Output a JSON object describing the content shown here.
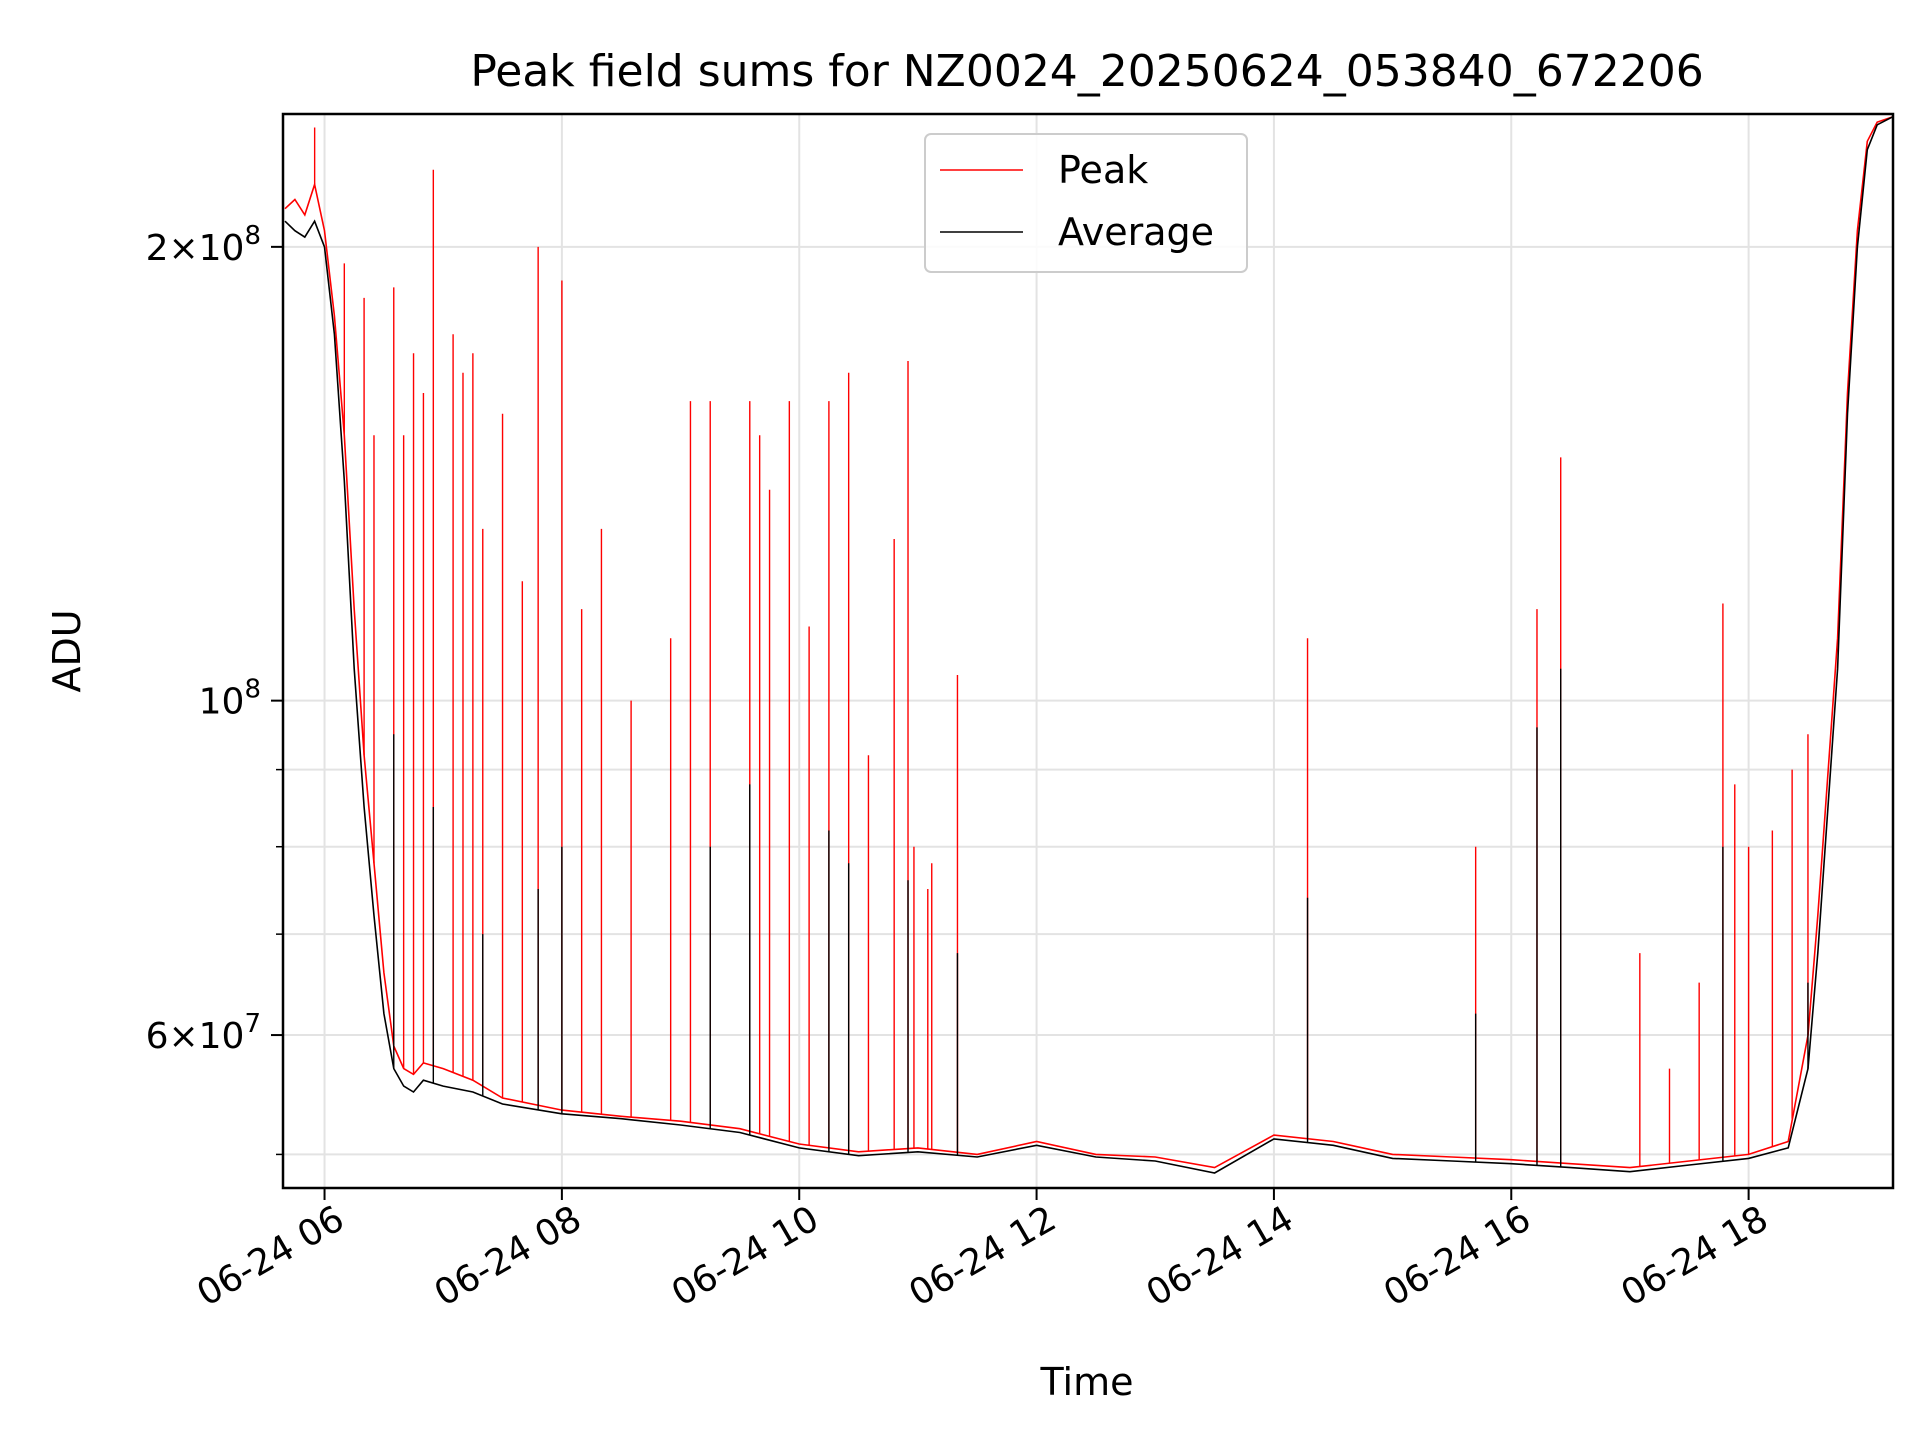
{
  "chart_data": {
    "type": "line",
    "title": "Peak field sums for NZ0024_20250624_053840_672206",
    "xlabel": "Time",
    "ylabel": "ADU",
    "y_scale": "log",
    "ylim": [
      47500000,
      245000000
    ],
    "xlim": [
      "06-24 05:39",
      "06-24 19:13"
    ],
    "grid": true,
    "legend_placement": "top-center",
    "x_ticks": [
      "06-24 06",
      "06-24 08",
      "06-24 10",
      "06-24 12",
      "06-24 14",
      "06-24 16",
      "06-24 18"
    ],
    "y_ticks": [
      {
        "value": 60000000,
        "mantissa": "6",
        "base": "10",
        "exp": "7"
      },
      {
        "value": 100000000,
        "mantissa": "",
        "base": "10",
        "exp": "8"
      },
      {
        "value": 200000000,
        "mantissa": "2",
        "base": "10",
        "exp": "8"
      }
    ],
    "series": [
      {
        "name": "Peak",
        "color": "#ff0000",
        "points": [
          [
            "06-24 05:40",
            212000000
          ],
          [
            "06-24 05:45",
            215000000
          ],
          [
            "06-24 05:50",
            210000000
          ],
          [
            "06-24 05:55",
            220000000
          ],
          [
            "06-24 06:00",
            205000000
          ],
          [
            "06-24 06:05",
            180000000
          ],
          [
            "06-24 06:10",
            150000000
          ],
          [
            "06-24 06:15",
            115000000
          ],
          [
            "06-24 06:20",
            92000000
          ],
          [
            "06-24 06:25",
            78000000
          ],
          [
            "06-24 06:30",
            66000000
          ],
          [
            "06-24 06:35",
            59000000
          ],
          [
            "06-24 06:40",
            57000000
          ],
          [
            "06-24 06:45",
            56500000
          ],
          [
            "06-24 06:50",
            57500000
          ],
          [
            "06-24 07:00",
            57000000
          ],
          [
            "06-24 07:15",
            56000000
          ],
          [
            "06-24 07:30",
            54500000
          ],
          [
            "06-24 08:00",
            53500000
          ],
          [
            "06-24 08:30",
            53000000
          ],
          [
            "06-24 09:00",
            52600000
          ],
          [
            "06-24 09:30",
            52000000
          ],
          [
            "06-24 10:00",
            50800000
          ],
          [
            "06-24 10:30",
            50200000
          ],
          [
            "06-24 11:00",
            50500000
          ],
          [
            "06-24 11:30",
            50000000
          ],
          [
            "06-24 12:00",
            51000000
          ],
          [
            "06-24 12:30",
            50000000
          ],
          [
            "06-24 13:00",
            49800000
          ],
          [
            "06-24 13:30",
            49000000
          ],
          [
            "06-24 14:00",
            51500000
          ],
          [
            "06-24 14:30",
            51000000
          ],
          [
            "06-24 15:00",
            50000000
          ],
          [
            "06-24 15:30",
            49800000
          ],
          [
            "06-24 16:00",
            49600000
          ],
          [
            "06-24 16:30",
            49300000
          ],
          [
            "06-24 17:00",
            49000000
          ],
          [
            "06-24 17:30",
            49500000
          ],
          [
            "06-24 18:00",
            50000000
          ],
          [
            "06-24 18:20",
            51000000
          ],
          [
            "06-24 18:30",
            60000000
          ],
          [
            "06-24 18:35",
            72000000
          ],
          [
            "06-24 18:45",
            110000000
          ],
          [
            "06-24 18:50",
            160000000
          ],
          [
            "06-24 18:55",
            205000000
          ],
          [
            "06-24 19:00",
            235000000
          ],
          [
            "06-24 19:05",
            242000000
          ],
          [
            "06-24 19:13",
            244000000
          ]
        ],
        "spikes": [
          [
            "06-24 05:55",
            240000000
          ],
          [
            "06-24 06:10",
            195000000
          ],
          [
            "06-24 06:20",
            185000000
          ],
          [
            "06-24 06:25",
            150000000
          ],
          [
            "06-24 06:35",
            188000000
          ],
          [
            "06-24 06:40",
            150000000
          ],
          [
            "06-24 06:45",
            170000000
          ],
          [
            "06-24 06:50",
            160000000
          ],
          [
            "06-24 06:55",
            225000000
          ],
          [
            "06-24 07:05",
            175000000
          ],
          [
            "06-24 07:10",
            165000000
          ],
          [
            "06-24 07:15",
            170000000
          ],
          [
            "06-24 07:20",
            130000000
          ],
          [
            "06-24 07:30",
            155000000
          ],
          [
            "06-24 07:40",
            120000000
          ],
          [
            "06-24 07:48",
            200000000
          ],
          [
            "06-24 08:00",
            190000000
          ],
          [
            "06-24 08:10",
            115000000
          ],
          [
            "06-24 08:20",
            130000000
          ],
          [
            "06-24 08:35",
            100000000
          ],
          [
            "06-24 08:55",
            110000000
          ],
          [
            "06-24 09:05",
            158000000
          ],
          [
            "06-24 09:15",
            158000000
          ],
          [
            "06-24 09:35",
            158000000
          ],
          [
            "06-24 09:40",
            150000000
          ],
          [
            "06-24 09:45",
            138000000
          ],
          [
            "06-24 09:55",
            158000000
          ],
          [
            "06-24 10:05",
            112000000
          ],
          [
            "06-24 10:15",
            158000000
          ],
          [
            "06-24 10:25",
            165000000
          ],
          [
            "06-24 10:35",
            92000000
          ],
          [
            "06-24 10:48",
            128000000
          ],
          [
            "06-24 10:58",
            80000000
          ],
          [
            "06-24 11:05",
            75000000
          ],
          [
            "06-24 10:55",
            168000000
          ],
          [
            "06-24 11:07",
            78000000
          ],
          [
            "06-24 11:20",
            104000000
          ],
          [
            "06-24 14:17",
            110000000
          ],
          [
            "06-24 15:42",
            80000000
          ],
          [
            "06-24 16:13",
            115000000
          ],
          [
            "06-24 16:25",
            145000000
          ],
          [
            "06-24 17:05",
            68000000
          ],
          [
            "06-24 17:20",
            57000000
          ],
          [
            "06-24 17:35",
            65000000
          ],
          [
            "06-24 17:47",
            116000000
          ],
          [
            "06-24 17:53",
            88000000
          ],
          [
            "06-24 18:00",
            80000000
          ],
          [
            "06-24 18:12",
            82000000
          ],
          [
            "06-24 18:22",
            90000000
          ],
          [
            "06-24 18:30",
            95000000
          ]
        ]
      },
      {
        "name": "Average",
        "color": "#000000",
        "points": [
          [
            "06-24 05:40",
            208000000
          ],
          [
            "06-24 05:45",
            205000000
          ],
          [
            "06-24 05:50",
            203000000
          ],
          [
            "06-24 05:55",
            208000000
          ],
          [
            "06-24 06:00",
            200000000
          ],
          [
            "06-24 06:05",
            175000000
          ],
          [
            "06-24 06:10",
            140000000
          ],
          [
            "06-24 06:15",
            105000000
          ],
          [
            "06-24 06:20",
            85000000
          ],
          [
            "06-24 06:25",
            72000000
          ],
          [
            "06-24 06:30",
            62000000
          ],
          [
            "06-24 06:35",
            57000000
          ],
          [
            "06-24 06:40",
            55500000
          ],
          [
            "06-24 06:45",
            55000000
          ],
          [
            "06-24 06:50",
            56000000
          ],
          [
            "06-24 07:00",
            55500000
          ],
          [
            "06-24 07:15",
            55000000
          ],
          [
            "06-24 07:30",
            54000000
          ],
          [
            "06-24 08:00",
            53200000
          ],
          [
            "06-24 08:30",
            52800000
          ],
          [
            "06-24 09:00",
            52300000
          ],
          [
            "06-24 09:30",
            51700000
          ],
          [
            "06-24 10:00",
            50500000
          ],
          [
            "06-24 10:30",
            49900000
          ],
          [
            "06-24 11:00",
            50200000
          ],
          [
            "06-24 11:30",
            49800000
          ],
          [
            "06-24 12:00",
            50700000
          ],
          [
            "06-24 12:30",
            49800000
          ],
          [
            "06-24 13:00",
            49500000
          ],
          [
            "06-24 13:30",
            48600000
          ],
          [
            "06-24 14:00",
            51200000
          ],
          [
            "06-24 14:30",
            50700000
          ],
          [
            "06-24 15:00",
            49700000
          ],
          [
            "06-24 15:30",
            49500000
          ],
          [
            "06-24 16:00",
            49300000
          ],
          [
            "06-24 16:30",
            49000000
          ],
          [
            "06-24 17:00",
            48700000
          ],
          [
            "06-24 17:30",
            49200000
          ],
          [
            "06-24 18:00",
            49700000
          ],
          [
            "06-24 18:20",
            50500000
          ],
          [
            "06-24 18:30",
            57000000
          ],
          [
            "06-24 18:35",
            68000000
          ],
          [
            "06-24 18:45",
            105000000
          ],
          [
            "06-24 18:50",
            155000000
          ],
          [
            "06-24 18:55",
            200000000
          ],
          [
            "06-24 19:00",
            232000000
          ],
          [
            "06-24 19:05",
            241000000
          ],
          [
            "06-24 19:13",
            244000000
          ]
        ],
        "spikes": [
          [
            "06-24 06:35",
            95000000
          ],
          [
            "06-24 06:55",
            85000000
          ],
          [
            "06-24 07:20",
            70000000
          ],
          [
            "06-24 07:48",
            75000000
          ],
          [
            "06-24 08:00",
            80000000
          ],
          [
            "06-24 09:15",
            80000000
          ],
          [
            "06-24 09:35",
            88000000
          ],
          [
            "06-24 10:15",
            82000000
          ],
          [
            "06-24 10:25",
            78000000
          ],
          [
            "06-24 10:55",
            76000000
          ],
          [
            "06-24 11:20",
            68000000
          ],
          [
            "06-24 14:17",
            74000000
          ],
          [
            "06-24 15:42",
            62000000
          ],
          [
            "06-24 16:13",
            96000000
          ],
          [
            "06-24 16:25",
            105000000
          ],
          [
            "06-24 17:47",
            80000000
          ],
          [
            "06-24 18:30",
            65000000
          ]
        ]
      }
    ]
  }
}
